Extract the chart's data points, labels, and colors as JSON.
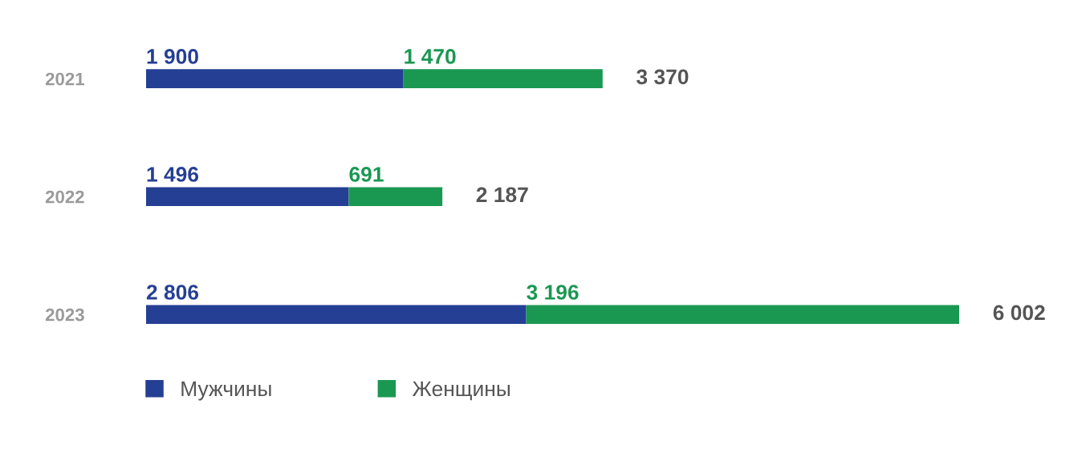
{
  "chart_data": {
    "type": "bar",
    "orientation": "horizontal",
    "stacked": true,
    "categories": [
      "2021",
      "2022",
      "2023"
    ],
    "series": [
      {
        "name": "Мужчины",
        "color": "#253f94",
        "values": [
          1900,
          1496,
          2806
        ],
        "value_labels": [
          "1 900",
          "1 496",
          "2 806"
        ]
      },
      {
        "name": "Женщины",
        "color": "#1a9852",
        "values": [
          1470,
          691,
          3196
        ],
        "value_labels": [
          "1 470",
          "691",
          "3 196"
        ]
      }
    ],
    "totals": [
      "3 370",
      "2 187",
      "6 002"
    ],
    "legend": "bottom left",
    "grid": false,
    "tick_labels": "y"
  }
}
